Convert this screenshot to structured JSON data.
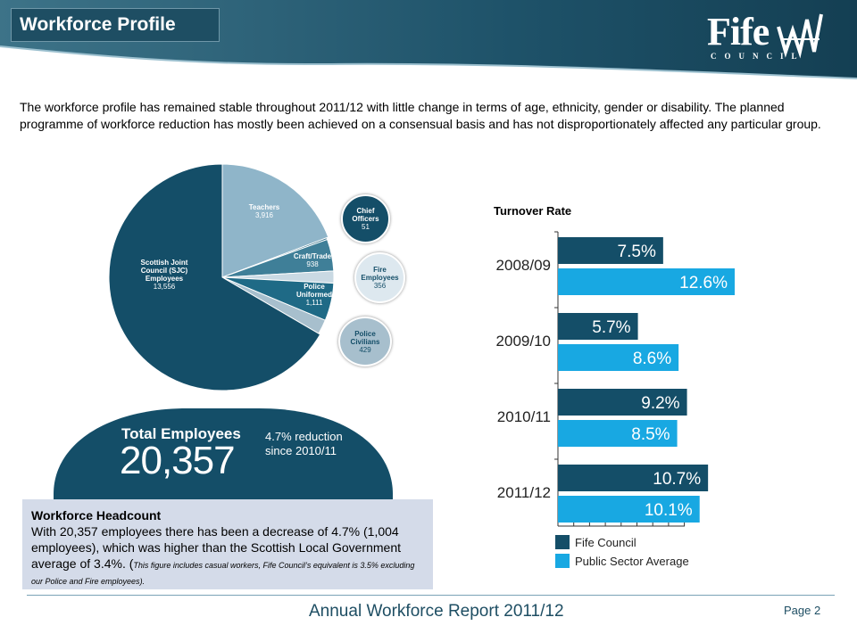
{
  "header": {
    "title": "Workforce Profile",
    "logo_main": "Fife",
    "logo_sub": "COUNCIL",
    "band_color": "#1e4e63"
  },
  "intro": "The workforce profile has remained stable throughout 2011/12 with little change in terms of age, ethnicity, gender or disability. The planned programme of workforce reduction has mostly been achieved on a consensual basis and has not disproportionately affected any particular group.",
  "chart_data": [
    {
      "type": "pie",
      "slices": [
        {
          "label": "Teachers",
          "value": 3916,
          "value_text": "3,916",
          "color": "#8fb5c9"
        },
        {
          "label": "Chief Officers",
          "value": 51,
          "value_text": "51",
          "color": "#2e6e86"
        },
        {
          "label": "Craft/Trade",
          "value": 938,
          "value_text": "938",
          "color": "#3f7f98"
        },
        {
          "label": "Fire Employees",
          "value": 356,
          "value_text": "356",
          "color": "#c9d9e3"
        },
        {
          "label": "Police Uniformed",
          "value": 1111,
          "value_text": "1,111",
          "color": "#1f6a86"
        },
        {
          "label": "Police Civilians",
          "value": 429,
          "value_text": "429",
          "color": "#a7bfcd"
        },
        {
          "label": "Scottish Joint Council (SJC) Employees",
          "value": 13556,
          "value_text": "13,556",
          "color": "#144e68"
        }
      ],
      "total": {
        "label": "Total Employees",
        "value_text": "20,357",
        "note": "4.7% reduction since 2010/11"
      }
    },
    {
      "type": "bar",
      "orientation": "horizontal",
      "title": "Turnover Rate",
      "categories": [
        "2008/09",
        "2009/10",
        "2010/11",
        "2011/12"
      ],
      "series": [
        {
          "name": "Fife Council",
          "color": "#144e68",
          "values": [
            7.5,
            5.7,
            9.2,
            10.7
          ],
          "labels": [
            "7.5%",
            "5.7%",
            "9.2%",
            "10.7%"
          ]
        },
        {
          "name": "Public Sector Average",
          "color": "#18a8e2",
          "values": [
            12.6,
            8.6,
            8.5,
            10.1
          ],
          "labels": [
            "12.6%",
            "8.6%",
            "8.5%",
            "10.1%"
          ]
        }
      ],
      "xlim": [
        0,
        14
      ],
      "legend": "bottom"
    }
  ],
  "headcount": {
    "heading": "Workforce Headcount",
    "body": "With 20,357 employees there has been a decrease of 4.7% (1,004 employees), which was higher than the Scottish Local Government average of 3.4%. (",
    "note": "This figure includes casual workers, Fife Council’s equivalent is 3.5% excluding our Police and Fire employees",
    "tail": ")."
  },
  "footer": {
    "title": "Annual Workforce Report 2011/12",
    "page": "Page 2"
  }
}
